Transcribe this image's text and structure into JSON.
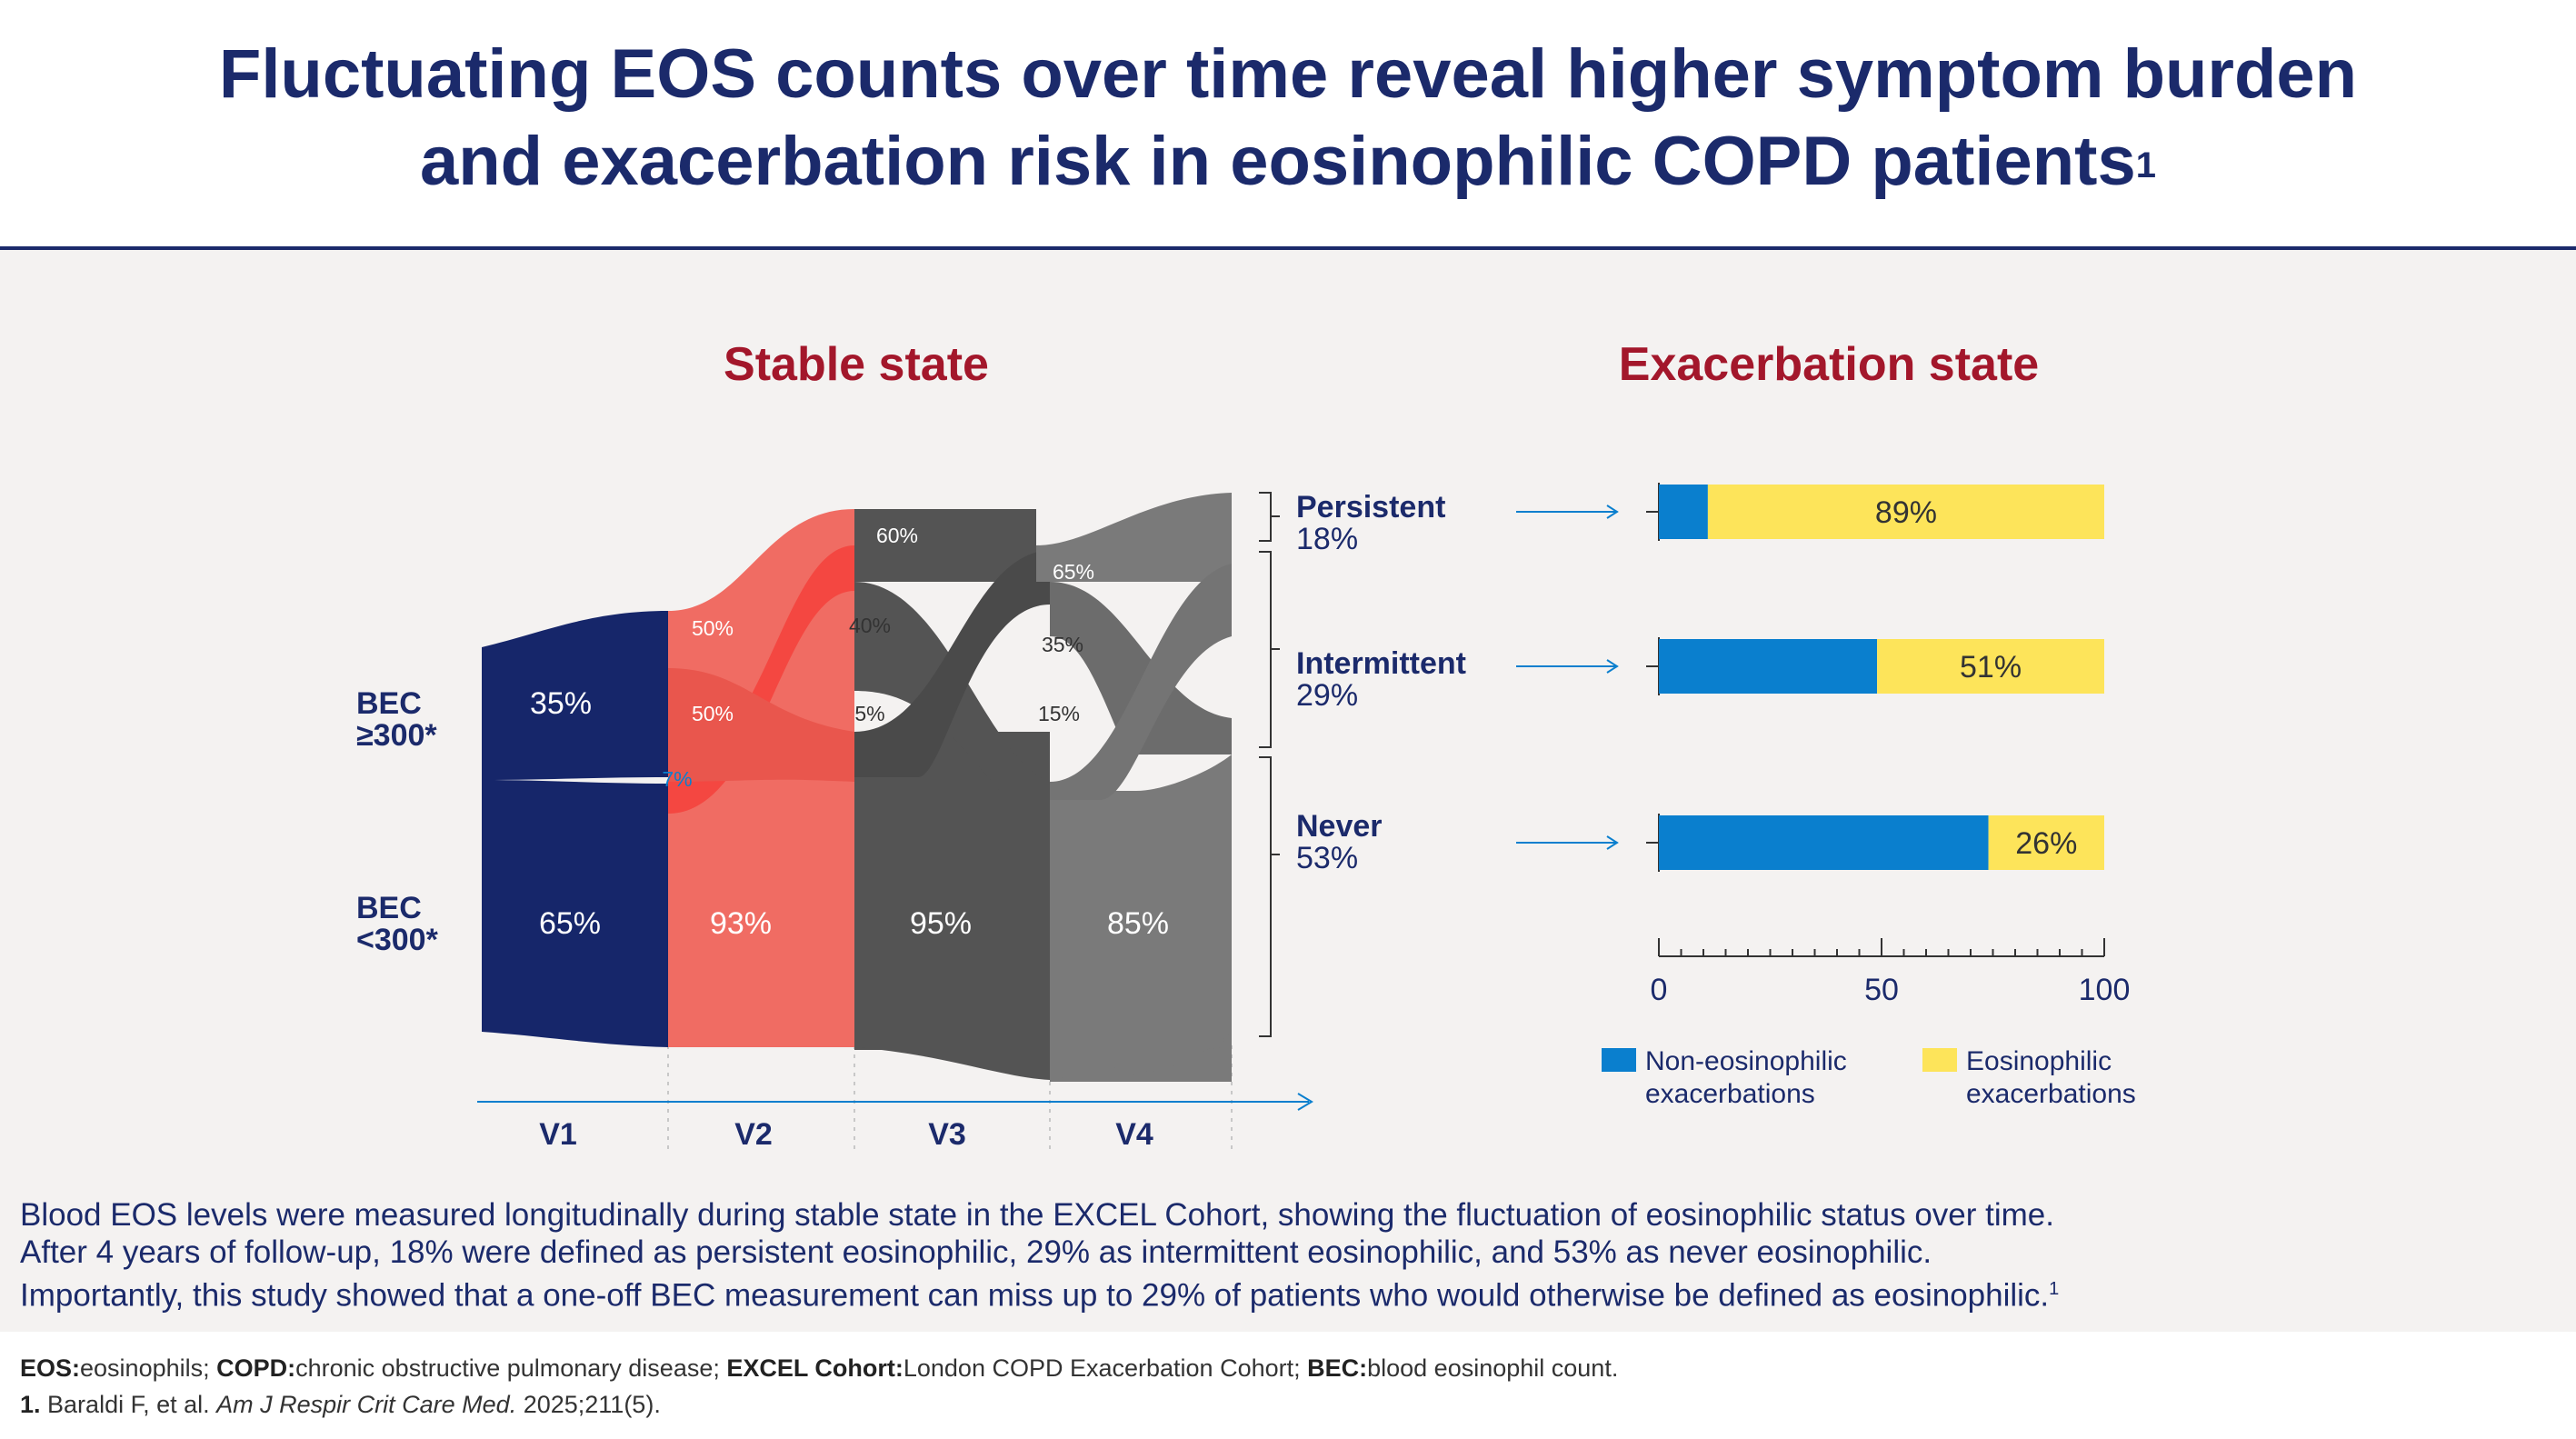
{
  "title_line1": "Fluctuating EOS counts over time reveal higher symptom burden",
  "title_line2": "and exacerbation risk in eosinophilic COPD patients",
  "title_sup": "1",
  "colors": {
    "navy": "#16266a",
    "salmon": "#f06c63",
    "dark_gray": "#545454",
    "mid_gray": "#7a7a7a",
    "blue": "#0a7fce",
    "yellow": "#fde45a",
    "heading_red": "#a3172b"
  },
  "stable": {
    "heading": "Stable state",
    "visits": [
      "V1",
      "V2",
      "V3",
      "V4"
    ],
    "bec_high_label": [
      "BEC",
      "≥300*"
    ],
    "bec_low_label": [
      "BEC",
      "<300*"
    ],
    "v1": {
      "high": "35%",
      "low": "65%"
    },
    "v2": {
      "high_up": "50%",
      "high_mid": "50%",
      "up_from_low": "7%",
      "low": "93%"
    },
    "v3": {
      "top": "60%",
      "mid": "40%",
      "low_up": "5%",
      "low": "95%"
    },
    "v4": {
      "top": "65%",
      "mid": "35%",
      "low_up": "15%",
      "low": "85%"
    }
  },
  "groups": [
    {
      "name": "Persistent",
      "pct": "18%"
    },
    {
      "name": "Intermittent",
      "pct": "29%"
    },
    {
      "name": "Never",
      "pct": "53%"
    }
  ],
  "exacerbation": {
    "heading": "Exacerbation state",
    "axis_ticks": [
      "0",
      "50",
      "100"
    ],
    "legend": {
      "non_eos": [
        "Non-eosinophilic",
        "exacerbations"
      ],
      "eos": [
        "Eosinophilic",
        "exacerbations"
      ]
    }
  },
  "chart_data": {
    "type": "bar",
    "stacked": true,
    "orientation": "horizontal",
    "categories": [
      "Persistent",
      "Intermittent",
      "Never"
    ],
    "series": [
      {
        "name": "Non-eosinophilic exacerbations",
        "values": [
          11,
          49,
          74
        ]
      },
      {
        "name": "Eosinophilic exacerbations",
        "values": [
          89,
          51,
          26
        ]
      }
    ],
    "data_labels": [
      "89%",
      "51%",
      "26%"
    ],
    "xlim": [
      0,
      100
    ],
    "xticks": [
      0,
      50,
      100
    ],
    "legend_position": "bottom"
  },
  "body": [
    "Blood EOS levels were measured longitudinally during stable state in the EXCEL Cohort, showing the fluctuation of eosinophilic status over time.",
    "After 4 years of follow-up, 18% were defined as persistent eosinophilic, 29% as intermittent eosinophilic, and 53% as never eosinophilic.",
    "Importantly, this study showed that a one-off BEC measurement can miss up to 29% of patients who would otherwise be defined as eosinophilic."
  ],
  "body_sup": "1",
  "footnote": {
    "abbr": [
      {
        "term": "EOS:",
        "def": "eosinophils; "
      },
      {
        "term": "COPD:",
        "def": "chronic obstructive pulmonary disease; "
      },
      {
        "term": "EXCEL Cohort:",
        "def": "London COPD Exacerbation Cohort; "
      },
      {
        "term": "BEC:",
        "def": "blood eosinophil count."
      }
    ],
    "ref_num": "1.",
    "ref_authors": " Baraldi F, et al. ",
    "ref_journal": "Am J Respir Crit Care Med.",
    "ref_rest": " 2025;211(5)."
  }
}
